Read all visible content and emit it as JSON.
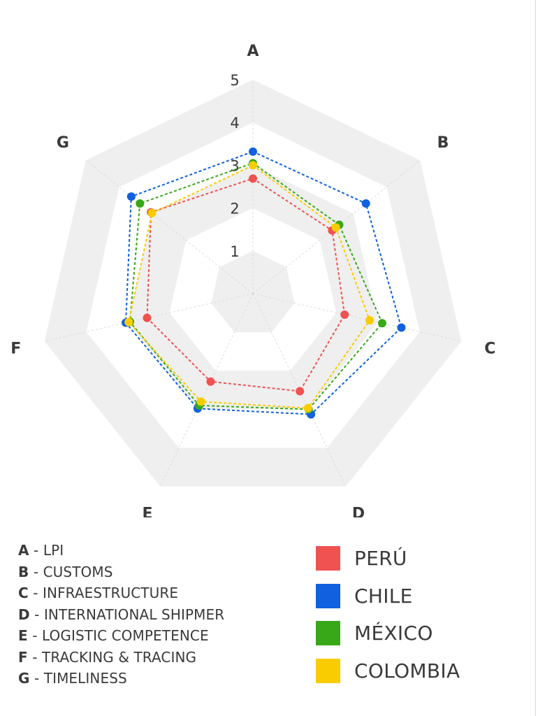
{
  "chart_data": {
    "type": "radar",
    "axes": [
      "A",
      "B",
      "C",
      "D",
      "E",
      "F",
      "G"
    ],
    "axis_descriptions": [
      "LPI",
      "CUSTOMS",
      "INFRAESTRUCTURE",
      "INTERNATIONAL SHIPMER",
      "LOGISTIC COMPETENCE",
      "TRACKING & TRACING",
      "TIMELINESS"
    ],
    "range": [
      0,
      5
    ],
    "ring_labels": [
      "1",
      "2",
      "3",
      "4",
      "5"
    ],
    "series": [
      {
        "name": "PERÚ",
        "color": "#f05252",
        "values": [
          2.69,
          2.37,
          2.2,
          2.53,
          2.28,
          2.54,
          3.05
        ]
      },
      {
        "name": "CHILE",
        "color": "#1060e0",
        "values": [
          3.32,
          3.38,
          3.56,
          3.13,
          2.98,
          3.05,
          3.64
        ]
      },
      {
        "name": "MÉXICO",
        "color": "#38a818",
        "values": [
          3.05,
          2.58,
          3.1,
          3.0,
          2.9,
          2.95,
          3.38
        ]
      },
      {
        "name": "COLOMBIA",
        "color": "#f8cc00",
        "values": [
          3.0,
          2.48,
          2.8,
          2.97,
          2.8,
          2.98,
          3.02
        ]
      }
    ]
  },
  "legend": {
    "axes": [
      {
        "key": "A",
        "sep": " - ",
        "label": "LPI"
      },
      {
        "key": "B",
        "sep": " - ",
        "label": "CUSTOMS"
      },
      {
        "key": "C",
        "sep": " - ",
        "label": "INFRAESTRUCTURE"
      },
      {
        "key": "D",
        "sep": " - ",
        "label": "INTERNATIONAL SHIPMER"
      },
      {
        "key": "E",
        "sep": " - ",
        "label": "LOGISTIC COMPETENCE"
      },
      {
        "key": "F",
        "sep": " - ",
        "label": "TRACKING & TRACING"
      },
      {
        "key": "G",
        "sep": " - ",
        "label": "TIMELINESS"
      }
    ],
    "series": [
      {
        "name": "PERÚ",
        "color": "#f05252"
      },
      {
        "name": "CHILE",
        "color": "#1060e0"
      },
      {
        "name": "MÉXICO",
        "color": "#38a818"
      },
      {
        "name": "COLOMBIA",
        "color": "#f8cc00"
      }
    ]
  }
}
